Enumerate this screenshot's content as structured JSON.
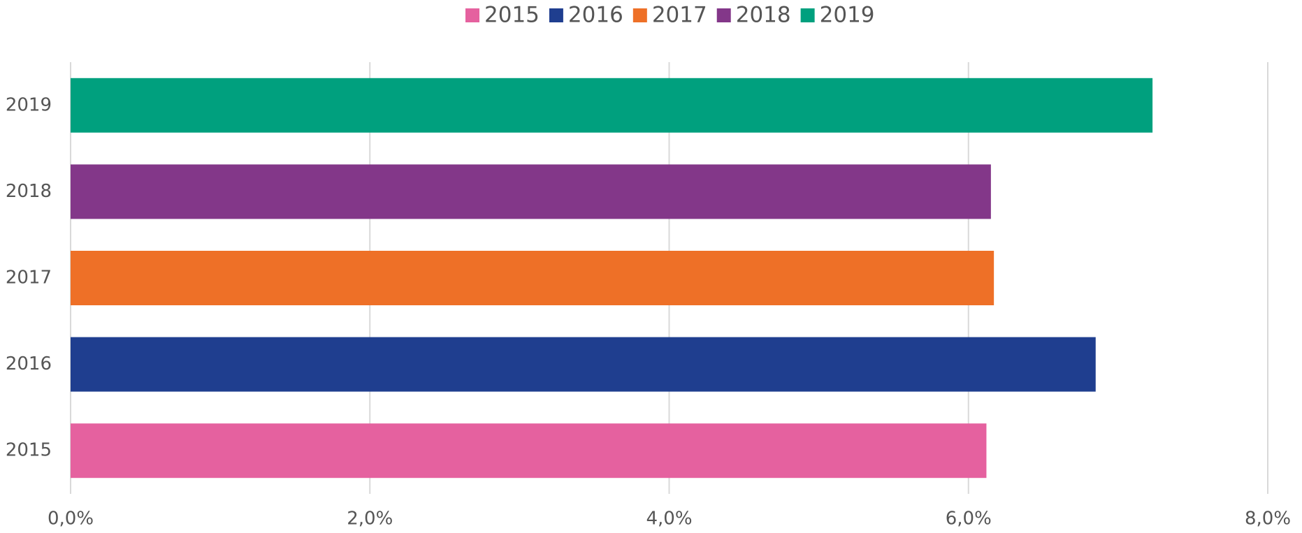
{
  "chart_data": {
    "type": "hbar",
    "categories": [
      "2015",
      "2016",
      "2017",
      "2018",
      "2019"
    ],
    "values": [
      6.12,
      6.85,
      6.17,
      6.15,
      7.23
    ],
    "colors": [
      "#e5619f",
      "#1f3e8f",
      "#ee7027",
      "#833789",
      "#00a07e"
    ],
    "xlim": [
      0,
      8
    ],
    "xticks": [
      {
        "value": 0,
        "label": "0,0%"
      },
      {
        "value": 2,
        "label": "2,0%"
      },
      {
        "value": 4,
        "label": "4,0%"
      },
      {
        "value": 6,
        "label": "6,0%"
      },
      {
        "value": 8,
        "label": "8,0%"
      }
    ],
    "grid": true,
    "legend": "top"
  }
}
